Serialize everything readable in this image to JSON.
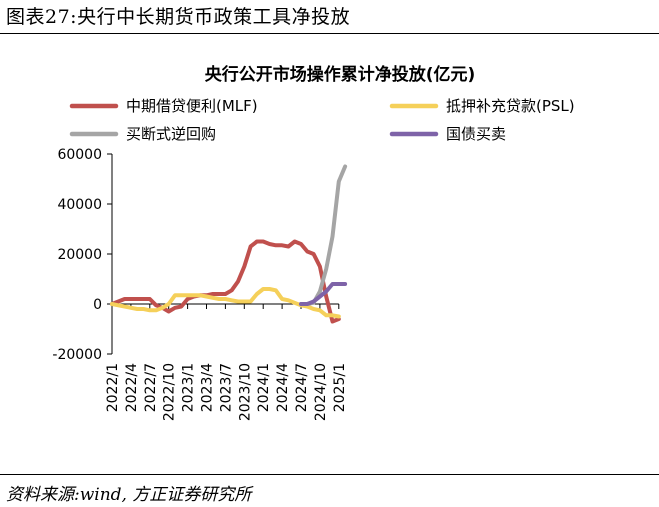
{
  "figure": {
    "label": "图表27:央行中长期货币政策工具净投放",
    "source": "资料来源:wind, 方正证券研究所"
  },
  "chart_data": {
    "type": "line",
    "title": "央行公开市场操作累计净投放(亿元)",
    "xlabel": "",
    "ylabel": "",
    "ylim": [
      -20000,
      60000
    ],
    "yticks": [
      -20000,
      0,
      20000,
      40000,
      60000
    ],
    "ytick_labels": [
      "-20000",
      "0",
      "20000",
      "40000",
      "60000"
    ],
    "x_start": "2022/1",
    "xticks": [
      "2022/1",
      "2022/4",
      "2022/7",
      "2022/10",
      "2023/1",
      "2023/4",
      "2023/7",
      "2023/10",
      "2024/1",
      "2024/4",
      "2024/7",
      "2024/10",
      "2025/1"
    ],
    "legend_placement": "top",
    "series": [
      {
        "name": "中期借贷便利(MLF)",
        "color": "#c0504d",
        "start_month": 0,
        "values": [
          0,
          1000,
          2000,
          2000,
          2000,
          2000,
          2000,
          -500,
          -1500,
          -3000,
          -1500,
          -1000,
          2000,
          3000,
          3500,
          3500,
          4000,
          4000,
          4000,
          5500,
          9000,
          15000,
          23000,
          25000,
          25000,
          24000,
          23500,
          23500,
          23000,
          25000,
          24000,
          21000,
          20000,
          15000,
          3000,
          -7000,
          -6000
        ]
      },
      {
        "name": "抵押补充贷款(PSL)",
        "color": "#f5d05a",
        "start_month": 0,
        "values": [
          0,
          -500,
          -1000,
          -1500,
          -2000,
          -2000,
          -2500,
          -2500,
          -1500,
          0,
          3500,
          3500,
          3500,
          3500,
          3500,
          3000,
          2500,
          2000,
          2000,
          1500,
          1000,
          1000,
          1000,
          4000,
          6000,
          6000,
          5500,
          2000,
          1500,
          500,
          -500,
          -1000,
          -2000,
          -2500,
          -4500,
          -4500,
          -5000
        ]
      },
      {
        "name": "买断式逆回购",
        "color": "#a5a5a5",
        "start_month": 30,
        "values": [
          0,
          0,
          500,
          5000,
          14000,
          27000,
          49000,
          55000
        ]
      },
      {
        "name": "国债买卖",
        "color": "#7e63a8",
        "start_month": 30,
        "values": [
          0,
          0,
          1000,
          3000,
          5000,
          8000,
          8000,
          8000
        ]
      }
    ]
  }
}
